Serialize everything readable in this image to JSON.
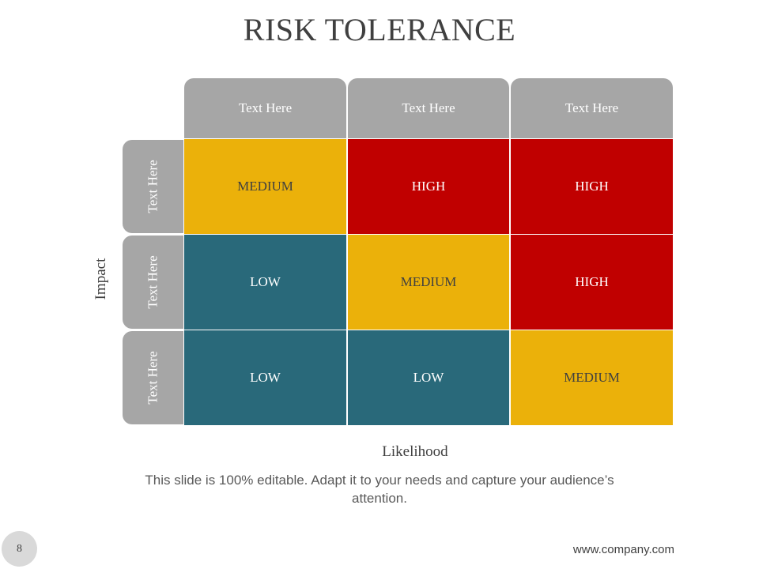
{
  "title": "RISK TOLERANCE",
  "column_headers": [
    "Text Here",
    "Text Here",
    "Text Here"
  ],
  "row_headers": [
    "Text Here",
    "Text Here",
    "Text Here"
  ],
  "cells": [
    [
      "MEDIUM",
      "HIGH",
      "HIGH"
    ],
    [
      "LOW",
      "MEDIUM",
      "HIGH"
    ],
    [
      "LOW",
      "LOW",
      "MEDIUM"
    ]
  ],
  "levels": {
    "LOW": {
      "bg": "#29697a",
      "fg": "#ffffff"
    },
    "MEDIUM": {
      "bg": "#ebb10a",
      "fg": "#404040"
    },
    "HIGH": {
      "bg": "#c00000",
      "fg": "#ffffff"
    }
  },
  "header_color": "#a6a6a6",
  "y_axis_label": "Impact",
  "x_axis_label": "Likelihood",
  "footnote": "This slide is 100% editable. Adapt it to your needs and capture your audience’s attention.",
  "page_number": "8",
  "website": "www.company.com"
}
